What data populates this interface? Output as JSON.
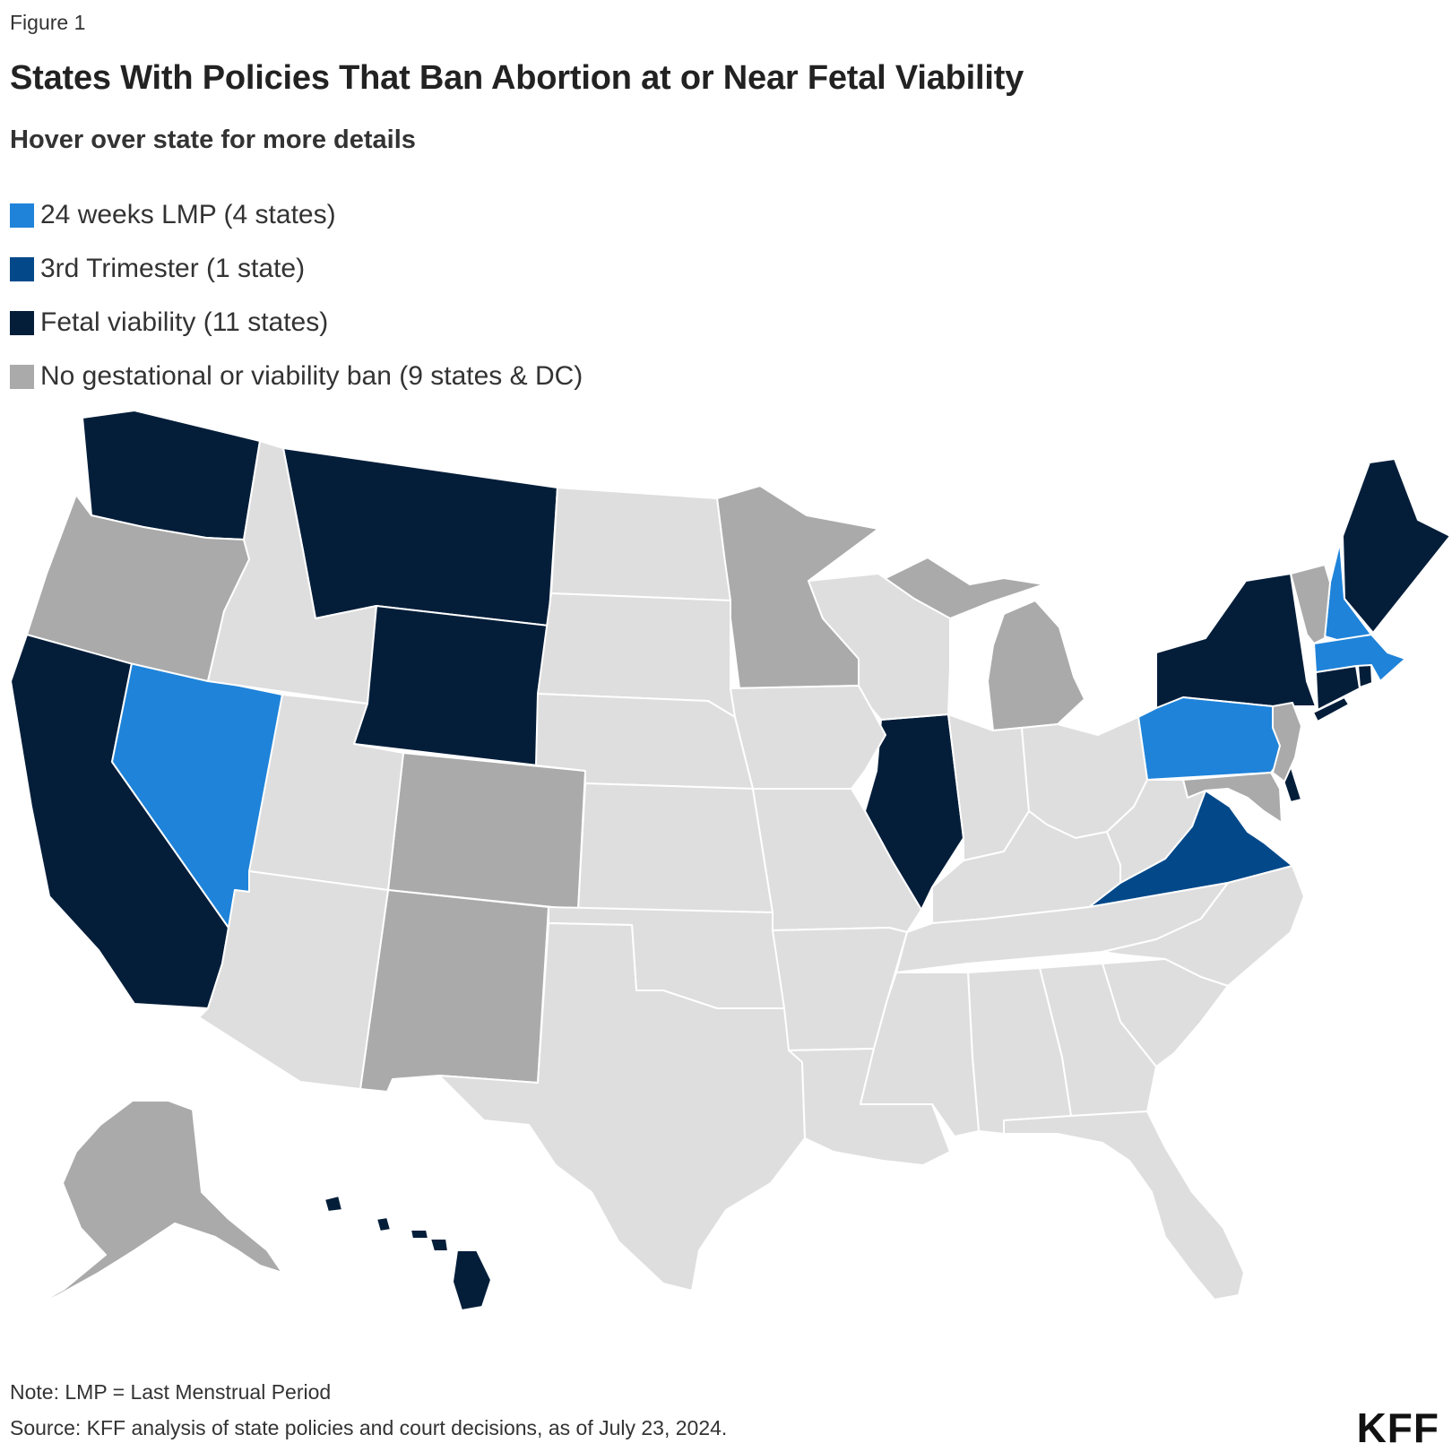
{
  "header": {
    "figure_label": "Figure 1",
    "title": "States With Policies That Ban Abortion at or Near Fetal Viability",
    "subtitle": "Hover over state for more details"
  },
  "legend": [
    {
      "label": "24 weeks LMP (4 states)",
      "color": "#1f83d9"
    },
    {
      "label": "3rd Trimester (1 state)",
      "color": "#03498a"
    },
    {
      "label": "Fetal viability (11 states)",
      "color": "#041e3a"
    },
    {
      "label": "No gestational or viability ban (9 states & DC)",
      "color": "#aaaaaa"
    }
  ],
  "colors": {
    "24_weeks_lmp": "#1f83d9",
    "3rd_trimester": "#03498a",
    "fetal_viability": "#041e3a",
    "no_ban": "#aaaaaa",
    "other": "#dedede"
  },
  "footer": {
    "note": "Note: LMP = Last Menstrual Period",
    "source": "Source: KFF analysis of state policies and court decisions, as of July 23, 2024.",
    "logo": "KFF"
  }
}
